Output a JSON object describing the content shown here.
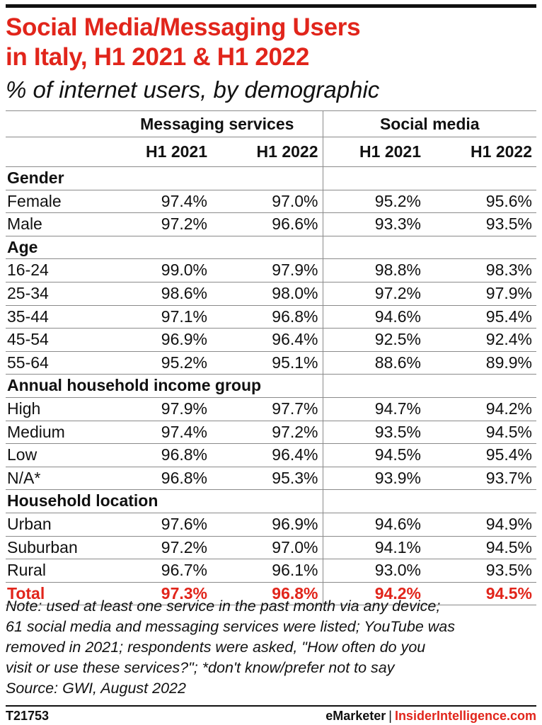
{
  "chart_data": {
    "type": "table",
    "title_line1": "Social Media/Messaging Users",
    "title_line2": "in Italy, H1 2021 & H1 2022",
    "subtitle": "% of internet users, by demographic",
    "column_groups": [
      "Messaging services",
      "Social media"
    ],
    "periods": [
      "H1 2021",
      "H1 2022",
      "H1 2021",
      "H1 2022"
    ],
    "sections": [
      {
        "name": "Gender",
        "rows": [
          {
            "label": "Female",
            "values": [
              "97.4%",
              "97.0%",
              "95.2%",
              "95.6%"
            ]
          },
          {
            "label": "Male",
            "values": [
              "97.2%",
              "96.6%",
              "93.3%",
              "93.5%"
            ]
          }
        ]
      },
      {
        "name": "Age",
        "rows": [
          {
            "label": "16-24",
            "values": [
              "99.0%",
              "97.9%",
              "98.8%",
              "98.3%"
            ]
          },
          {
            "label": "25-34",
            "values": [
              "98.6%",
              "98.0%",
              "97.2%",
              "97.9%"
            ]
          },
          {
            "label": "35-44",
            "values": [
              "97.1%",
              "96.8%",
              "94.6%",
              "95.4%"
            ]
          },
          {
            "label": "45-54",
            "values": [
              "96.9%",
              "96.4%",
              "92.5%",
              "92.4%"
            ]
          },
          {
            "label": "55-64",
            "values": [
              "95.2%",
              "95.1%",
              "88.6%",
              "89.9%"
            ]
          }
        ]
      },
      {
        "name": "Annual household income group",
        "rows": [
          {
            "label": "High",
            "values": [
              "97.9%",
              "97.7%",
              "94.7%",
              "94.2%"
            ]
          },
          {
            "label": "Medium",
            "values": [
              "97.4%",
              "97.2%",
              "93.5%",
              "94.5%"
            ]
          },
          {
            "label": "Low",
            "values": [
              "96.8%",
              "96.4%",
              "94.5%",
              "95.4%"
            ]
          },
          {
            "label": "N/A*",
            "values": [
              "96.8%",
              "95.3%",
              "93.9%",
              "93.7%"
            ]
          }
        ]
      },
      {
        "name": "Household location",
        "rows": [
          {
            "label": "Urban",
            "values": [
              "97.6%",
              "96.9%",
              "94.6%",
              "94.9%"
            ]
          },
          {
            "label": "Suburban",
            "values": [
              "97.2%",
              "97.0%",
              "94.1%",
              "94.5%"
            ]
          },
          {
            "label": "Rural",
            "values": [
              "96.7%",
              "96.1%",
              "93.0%",
              "93.5%"
            ]
          }
        ]
      }
    ],
    "total": {
      "label": "Total",
      "values": [
        "97.3%",
        "96.8%",
        "94.2%",
        "94.5%"
      ]
    }
  },
  "note_line1": "Note: used at least one service in the past month via any device;",
  "note_line2": "61 social media and messaging services were listed; YouTube was",
  "note_line3": "removed in 2021; respondents were asked, \"How often do you",
  "note_line4": "visit or use these services?\"; *don't know/prefer not to say",
  "note_line5": "Source: GWI, August 2022",
  "footer": {
    "chart_id": "T21753",
    "brand_left": "eMarketer",
    "brand_sep": "|",
    "brand_right": "InsiderIntelligence.com"
  },
  "colors": {
    "accent": "#e1251b",
    "text": "#111111",
    "rule": "#8a8a8a"
  }
}
